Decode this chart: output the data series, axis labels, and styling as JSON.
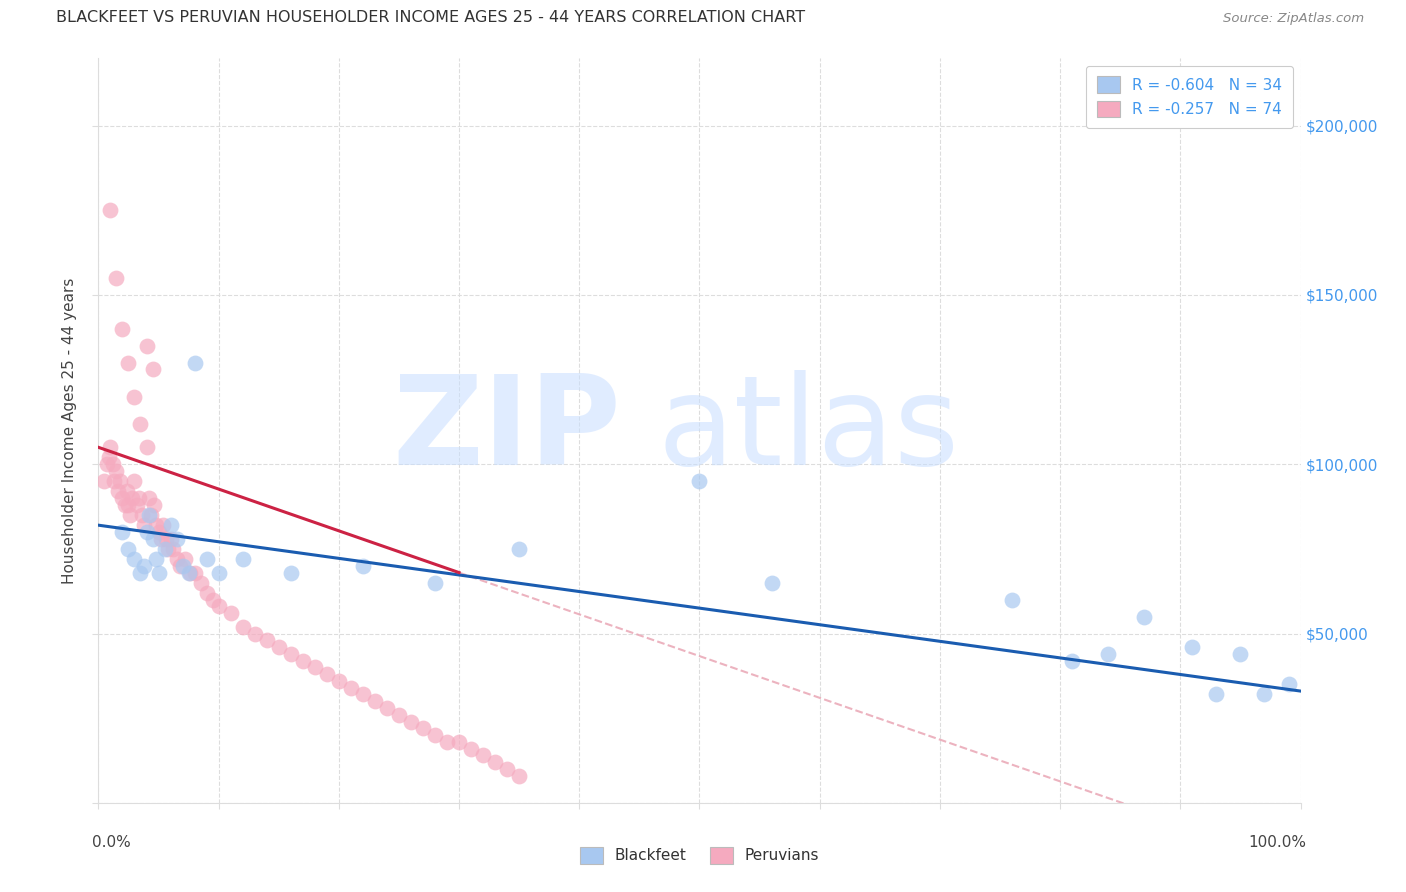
{
  "title": "BLACKFEET VS PERUVIAN HOUSEHOLDER INCOME AGES 25 - 44 YEARS CORRELATION CHART",
  "source": "Source: ZipAtlas.com",
  "ylabel": "Householder Income Ages 25 - 44 years",
  "ytick_values": [
    0,
    50000,
    100000,
    150000,
    200000
  ],
  "ytick_labels_right": [
    "",
    "$50,000",
    "$100,000",
    "$150,000",
    "$200,000"
  ],
  "ylim": [
    0,
    220000
  ],
  "xlim": [
    0.0,
    1.0
  ],
  "legend_blue_label": "R = -0.604   N = 34",
  "legend_pink_label": "R = -0.257   N = 74",
  "legend_bottom_blue": "Blackfeet",
  "legend_bottom_pink": "Peruvians",
  "blue_color": "#A8C8F0",
  "pink_color": "#F5AABF",
  "blue_line_color": "#1A5CB0",
  "pink_line_color": "#CC2244",
  "dashed_line_color": "#E8A0B0",
  "background_color": "#FFFFFF",
  "title_color": "#333333",
  "right_ytick_color": "#4499EE",
  "grid_color": "#DDDDDD",
  "blackfeet_x": [
    0.02,
    0.025,
    0.03,
    0.035,
    0.038,
    0.04,
    0.042,
    0.045,
    0.048,
    0.05,
    0.055,
    0.06,
    0.065,
    0.07,
    0.075,
    0.08,
    0.09,
    0.1,
    0.12,
    0.16,
    0.22,
    0.28,
    0.35,
    0.5,
    0.56,
    0.76,
    0.81,
    0.84,
    0.87,
    0.91,
    0.93,
    0.95,
    0.97,
    0.99
  ],
  "blackfeet_y": [
    80000,
    75000,
    72000,
    68000,
    70000,
    80000,
    85000,
    78000,
    72000,
    68000,
    75000,
    82000,
    78000,
    70000,
    68000,
    130000,
    72000,
    68000,
    72000,
    68000,
    70000,
    65000,
    75000,
    95000,
    65000,
    60000,
    42000,
    44000,
    55000,
    46000,
    32000,
    44000,
    32000,
    35000
  ],
  "peruvian_x": [
    0.005,
    0.007,
    0.009,
    0.01,
    0.012,
    0.013,
    0.015,
    0.016,
    0.018,
    0.02,
    0.022,
    0.024,
    0.025,
    0.026,
    0.028,
    0.03,
    0.032,
    0.034,
    0.036,
    0.038,
    0.04,
    0.042,
    0.044,
    0.046,
    0.048,
    0.05,
    0.052,
    0.054,
    0.056,
    0.058,
    0.06,
    0.062,
    0.065,
    0.068,
    0.072,
    0.076,
    0.08,
    0.085,
    0.09,
    0.095,
    0.1,
    0.11,
    0.12,
    0.13,
    0.14,
    0.15,
    0.16,
    0.17,
    0.18,
    0.19,
    0.2,
    0.21,
    0.22,
    0.23,
    0.24,
    0.25,
    0.26,
    0.27,
    0.28,
    0.29,
    0.3,
    0.31,
    0.32,
    0.33,
    0.34,
    0.35,
    0.01,
    0.015,
    0.02,
    0.025,
    0.03,
    0.035,
    0.04,
    0.045
  ],
  "peruvian_y": [
    95000,
    100000,
    102000,
    105000,
    100000,
    95000,
    98000,
    92000,
    95000,
    90000,
    88000,
    92000,
    88000,
    85000,
    90000,
    95000,
    88000,
    90000,
    85000,
    82000,
    105000,
    90000,
    85000,
    88000,
    82000,
    80000,
    78000,
    82000,
    78000,
    75000,
    78000,
    75000,
    72000,
    70000,
    72000,
    68000,
    68000,
    65000,
    62000,
    60000,
    58000,
    56000,
    52000,
    50000,
    48000,
    46000,
    44000,
    42000,
    40000,
    38000,
    36000,
    34000,
    32000,
    30000,
    28000,
    26000,
    24000,
    22000,
    20000,
    18000,
    18000,
    16000,
    14000,
    12000,
    10000,
    8000,
    175000,
    155000,
    140000,
    130000,
    120000,
    112000,
    135000,
    128000
  ]
}
